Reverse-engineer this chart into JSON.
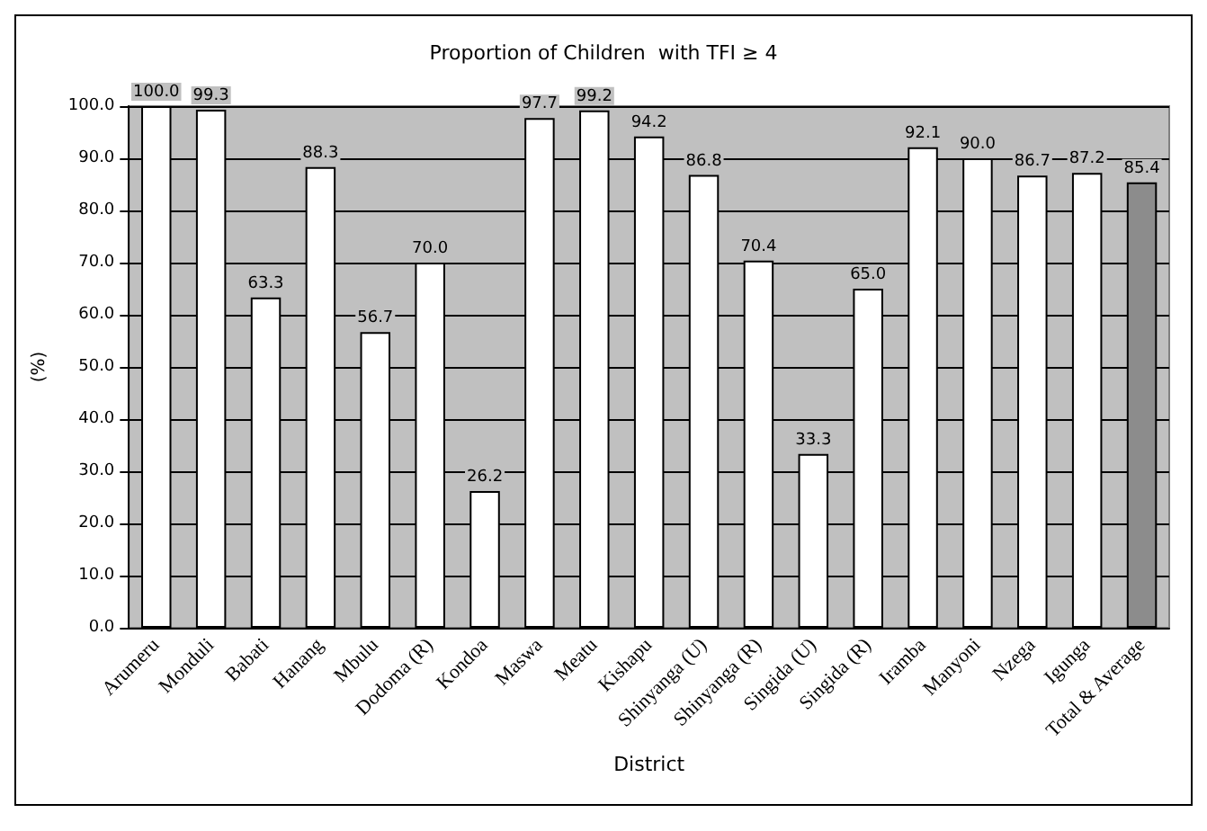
{
  "chart_data": {
    "type": "bar",
    "title": "Proportion of Children  with TFI ≥ 4",
    "xlabel": "District",
    "ylabel": "(%)",
    "categories": [
      "Arumeru",
      "Monduli",
      "Babati",
      "Hanang",
      "Mbulu",
      "Dodoma (R)",
      "Kondoa",
      "Maswa",
      "Meatu",
      "Kishapu",
      "Shinyanga (U)",
      "Shinyanga (R)",
      "Singida (U)",
      "Singida (R)",
      "Iramba",
      "Manyoni",
      "Nzega",
      "Igunga",
      "Total & Average"
    ],
    "values": [
      100,
      99.3,
      63.3,
      88.3,
      56.7,
      70,
      26.2,
      97.7,
      99.2,
      94.2,
      86.8,
      70.4,
      33.3,
      65,
      92.1,
      90,
      86.7,
      87.2,
      85.4
    ],
    "value_labels": [
      "100.0",
      "99.3",
      "63.3",
      "88.3",
      "56.7",
      "70.0",
      "26.2",
      "97.7",
      "99.2",
      "94.2",
      "86.8",
      "70.4",
      "33.3",
      "65.0",
      "92.1",
      "90.0",
      "86.7",
      "87.2",
      "85.4"
    ],
    "colors": [
      "#ffffff",
      "#ffffff",
      "#ffffff",
      "#ffffff",
      "#ffffff",
      "#ffffff",
      "#ffffff",
      "#ffffff",
      "#ffffff",
      "#ffffff",
      "#ffffff",
      "#ffffff",
      "#ffffff",
      "#ffffff",
      "#ffffff",
      "#ffffff",
      "#ffffff",
      "#ffffff",
      "#8c8c8c"
    ],
    "ylim": [
      0,
      100
    ],
    "yticks": [
      {
        "value": 0,
        "label": "0.0"
      },
      {
        "value": 10,
        "label": "10.0"
      },
      {
        "value": 20,
        "label": "20.0"
      },
      {
        "value": 30,
        "label": "30.0"
      },
      {
        "value": 40,
        "label": "40.0"
      },
      {
        "value": 50,
        "label": "50.0"
      },
      {
        "value": 60,
        "label": "60.0"
      },
      {
        "value": 70,
        "label": "70.0"
      },
      {
        "value": 80,
        "label": "80.0"
      },
      {
        "value": 90,
        "label": "90.0"
      },
      {
        "value": 100,
        "label": "100.0"
      }
    ],
    "grid": "y"
  }
}
